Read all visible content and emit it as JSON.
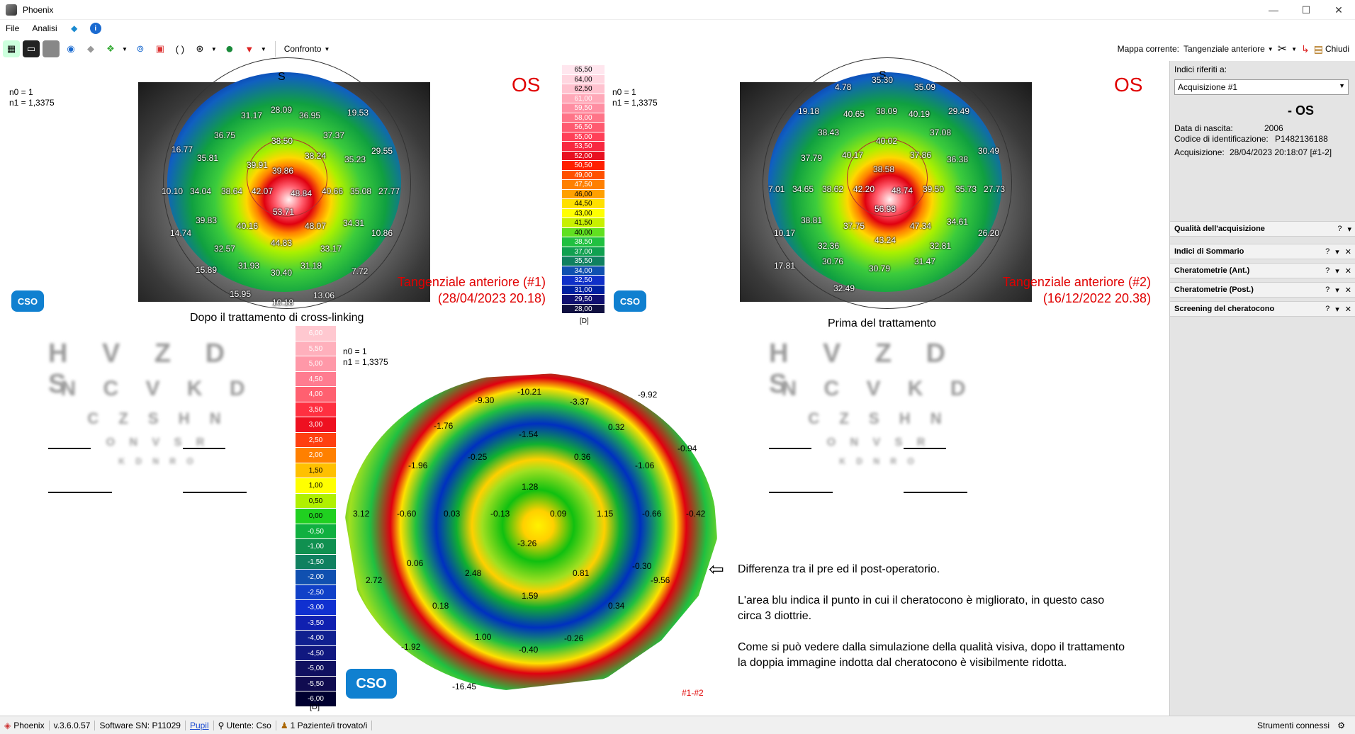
{
  "window": {
    "title": "Phoenix",
    "min": "—",
    "max": "☐",
    "close": "✕"
  },
  "menu": {
    "file": "File",
    "analysis": "Analisi"
  },
  "toolbar": {
    "compare": "Confronto",
    "current_map_label": "Mappa corrente:",
    "current_map_value": "Tangenziale anteriore",
    "close": "Chiudi"
  },
  "sidebar": {
    "indices_label": "Indici riferiti a:",
    "acquisition_select": "Acquisizione #1",
    "eye_title": "- OS",
    "dob_label": "Data di nascita:",
    "dob_value": "2006",
    "id_label": "Codice di identificazione:",
    "id_value": "P1482136188",
    "acq_label": "Acquisizione:",
    "acq_value": "28/04/2023 20:18:07 [#1-2]",
    "panels": [
      "Qualità dell'acquisizione",
      "Indici di Sommario",
      "Cheratometrie (Ant.)",
      "Cheratometrie (Post.)",
      "Screening del cheratocono"
    ]
  },
  "left_map": {
    "n0": "n0 = 1",
    "n1": "n1 = 1,3375",
    "eye": "OS",
    "top_label": "S",
    "title": "Tangenziale anteriore (#1)",
    "date": "(28/04/2023 20.18)",
    "caption": "Dopo il trattamento di cross-linking",
    "values": [
      "28.09",
      "36.95",
      "19.53",
      "31.17",
      "16.77",
      "36.75",
      "37.37",
      "38.50",
      "35.81",
      "38.24",
      "35.23",
      "29.55",
      "39.91",
      "39.86",
      "10.10",
      "34.04",
      "38.64",
      "42.07",
      "48.84",
      "40.66",
      "35.08",
      "27.77",
      "53.71",
      "39.83",
      "40.16",
      "48.07",
      "34.31",
      "14.74",
      "44.83",
      "10.86",
      "32.57",
      "33.17",
      "31.93",
      "30.40",
      "31.18",
      "15.89",
      "7.72",
      "15.95",
      "13.06",
      "10.18"
    ]
  },
  "right_map": {
    "n0": "n0 = 1",
    "n1": "n1 = 1,3375",
    "eye": "OS",
    "top_label": "S",
    "title": "Tangenziale anteriore (#2)",
    "date": "(16/12/2022 20.38)",
    "caption": "Prima del trattamento",
    "values": [
      "35.30",
      "4.78",
      "35.09",
      "19.18",
      "40.65",
      "38.09",
      "40.19",
      "29.49",
      "38.43",
      "37.08",
      "40.02",
      "37.79",
      "40.17",
      "37.86",
      "36.38",
      "30.49",
      "38.58",
      "7.01",
      "34.65",
      "38.62",
      "42.20",
      "48.74",
      "39.50",
      "35.73",
      "27.73",
      "56.98",
      "38.81",
      "37.75",
      "47.34",
      "34.61",
      "26.20",
      "10.17",
      "43.24",
      "32.36",
      "32.81",
      "17.81",
      "30.76",
      "31.47",
      "30.79",
      "32.49"
    ]
  },
  "top_scale": {
    "unit": "[D]",
    "values": [
      "65,50",
      "64,00",
      "62,50",
      "61,00",
      "59,50",
      "58,00",
      "56,50",
      "55,00",
      "53,50",
      "52,00",
      "50,50",
      "49,00",
      "47,50",
      "46,00",
      "44,50",
      "43,00",
      "41,50",
      "40,00",
      "38,50",
      "37,00",
      "35,50",
      "34,00",
      "32,50",
      "31,00",
      "29,50",
      "28,00"
    ],
    "colors": [
      "#ffe6ee",
      "#ffd6e0",
      "#ffc2cf",
      "#ffa8b8",
      "#ff8ea2",
      "#ff7488",
      "#ff5a70",
      "#ff4058",
      "#f82840",
      "#e81020",
      "#ff2000",
      "#ff5000",
      "#ff8000",
      "#ffa000",
      "#ffe000",
      "#ffff00",
      "#c8f000",
      "#60e020",
      "#20c040",
      "#10a050",
      "#108060",
      "#1050b0",
      "#1030c8",
      "#0020a0",
      "#101070",
      "#101040"
    ]
  },
  "bottom_scale": {
    "unit": "[D]",
    "n0": "n0 = 1",
    "n1": "n1 = 1,3375",
    "values": [
      "6,00",
      "5,50",
      "5,00",
      "4,50",
      "4,00",
      "3,50",
      "3,00",
      "2,50",
      "2,00",
      "1,50",
      "1,00",
      "0,50",
      "0,00",
      "-0,50",
      "-1,00",
      "-1,50",
      "-2,00",
      "-2,50",
      "-3,00",
      "-3,50",
      "-4,00",
      "-4,50",
      "-5,00",
      "-5,50",
      "-6,00"
    ],
    "colors": [
      "#ffc8d0",
      "#ffb0bc",
      "#ff98a8",
      "#ff7c90",
      "#ff6070",
      "#ff3040",
      "#ee1020",
      "#ff4010",
      "#ff8000",
      "#ffc000",
      "#ffff00",
      "#b0f000",
      "#20d020",
      "#10b040",
      "#109050",
      "#108060",
      "#1050b0",
      "#1040c8",
      "#1030d0",
      "#1020b0",
      "#102090",
      "#101880",
      "#101060",
      "#100c50",
      "#000030"
    ]
  },
  "diff_map": {
    "label": "#1-#2",
    "values": [
      "-9.30",
      "-10.21",
      "-3.37",
      "-9.92",
      "-1.76",
      "0.32",
      "-1.54",
      "-0.94",
      "-0.25",
      "0.36",
      "-1.96",
      "-1.06",
      "1.28",
      "3.12",
      "-0.60",
      "0.03",
      "-0.13",
      "0.09",
      "1.15",
      "-0.66",
      "-0.42",
      "-3.26",
      "0.06",
      "-0.30",
      "2.48",
      "0.81",
      "2.72",
      "-9.56",
      "1.59",
      "0.18",
      "0.34",
      "1.00",
      "-0.26",
      "-1.92",
      "-0.40",
      "-16.45"
    ]
  },
  "notes": {
    "line1": "Differenza tra il pre ed il post-operatorio.",
    "line2": "L'area blu indica il punto in cui il cheratocono è migliorato, in questo caso",
    "line3": "circa 3 diottrie.",
    "line4": "Come si può vedere dalla simulazione della qualità visiva, dopo il trattamento",
    "line5": "la doppia immagine indotta dal cheratocono è visibilmente ridotta."
  },
  "acuity_chart": {
    "rows": [
      "H V Z D S",
      "N C V K D",
      "C Z S H N",
      "O N V S R",
      "K D N R O"
    ]
  },
  "logo": "CSO",
  "status": {
    "app": "Phoenix",
    "version": "v.3.6.0.57",
    "serial": "Software SN: P11029",
    "pupil": "Pupil",
    "user": "Utente: Cso",
    "patients": "1 Paziente/i trovato/i",
    "tools": "Strumenti connessi"
  }
}
